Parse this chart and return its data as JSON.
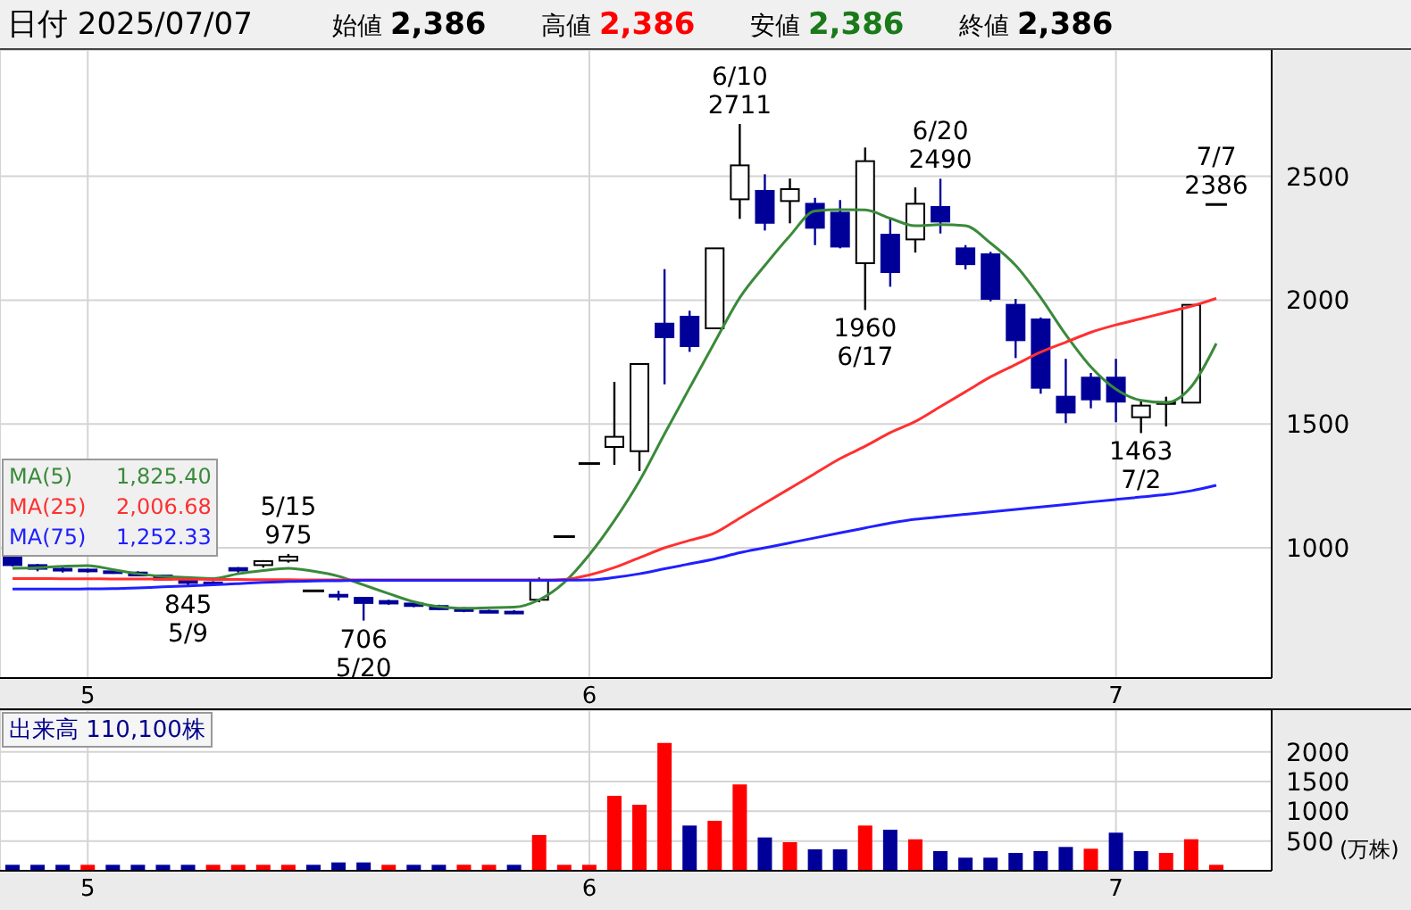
{
  "chart_data": [
    {
      "type": "candlestick",
      "title": "日付 2025/07/07",
      "annotations": [
        "始値 2,386",
        "高値 2,386",
        "安値 2,386",
        "終値 2,386",
        "1,825.40",
        "2,006.68",
        "1,252.33",
        "5/15\n975",
        "845\n5/9",
        "706\n5/20",
        "6/10\n2711",
        "1960\n6/17",
        "6/20\n2490",
        "1463\n7/2",
        "7/7\n2386"
      ],
      "categories": [
        null,
        null,
        null,
        "5",
        null,
        null,
        null,
        null,
        null,
        null,
        null,
        null,
        null,
        null,
        null,
        null,
        null,
        null,
        null,
        null,
        null,
        null,
        null,
        "6",
        null,
        null,
        null,
        null,
        null,
        null,
        null,
        null,
        null,
        null,
        null,
        null,
        null,
        null,
        null,
        null,
        null,
        null,
        null,
        null,
        "7",
        null,
        null,
        null,
        null
      ],
      "ohlc": [
        [
          965,
          970,
          925,
          930
        ],
        [
          930,
          935,
          905,
          915
        ],
        [
          915,
          925,
          900,
          912
        ],
        [
          912,
          915,
          900,
          905
        ],
        [
          905,
          910,
          895,
          900
        ],
        [
          900,
          905,
          885,
          888
        ],
        [
          888,
          892,
          870,
          872
        ],
        [
          872,
          880,
          845,
          858
        ],
        [
          860,
          865,
          850,
          855
        ],
        [
          918,
          922,
          900,
          908
        ],
        [
          930,
          950,
          920,
          946
        ],
        [
          948,
          975,
          940,
          964
        ],
        [
          826,
          828,
          824,
          826
        ],
        [
          810,
          826,
          787,
          808
        ],
        [
          798,
          800,
          706,
          777
        ],
        [
          785,
          790,
          770,
          775
        ],
        [
          775,
          780,
          760,
          765
        ],
        [
          765,
          770,
          748,
          752
        ],
        [
          752,
          760,
          740,
          745
        ],
        [
          745,
          750,
          738,
          742
        ],
        [
          742,
          748,
          735,
          740
        ],
        [
          790,
          880,
          780,
          868
        ],
        [
          1045,
          1045,
          1045,
          1045
        ],
        [
          1340,
          1340,
          1340,
          1340
        ],
        [
          1407,
          1670,
          1335,
          1448
        ],
        [
          1390,
          1742,
          1310,
          1742
        ],
        [
          1905,
          2125,
          1660,
          1850
        ],
        [
          1933,
          1957,
          1791,
          1814
        ],
        [
          1886,
          2209,
          1886,
          2209
        ],
        [
          2407,
          2711,
          2328,
          2544
        ],
        [
          2441,
          2508,
          2281,
          2312
        ],
        [
          2400,
          2491,
          2310,
          2448
        ],
        [
          2389,
          2413,
          2222,
          2292
        ],
        [
          2353,
          2404,
          2209,
          2216
        ],
        [
          2149,
          2616,
          1960,
          2561
        ],
        [
          2264,
          2329,
          2054,
          2113
        ],
        [
          2245,
          2455,
          2192,
          2389
        ],
        [
          2376,
          2490,
          2269,
          2317
        ],
        [
          2209,
          2222,
          2124,
          2145
        ],
        [
          2185,
          2195,
          1995,
          2005
        ],
        [
          1981,
          2005,
          1766,
          1838
        ],
        [
          1922,
          1930,
          1622,
          1646
        ],
        [
          1610,
          1763,
          1503,
          1546
        ],
        [
          1687,
          1706,
          1563,
          1599
        ],
        [
          1687,
          1763,
          1507,
          1590
        ],
        [
          1527,
          1598,
          1463,
          1574
        ],
        [
          1583,
          1610,
          1490,
          1588
        ],
        [
          1586,
          1981,
          1586,
          1981
        ],
        [
          2386,
          2386,
          2386,
          2386
        ]
      ],
      "colors": [
        "#000099",
        "#000099",
        "#000099",
        "#000099",
        "#000099",
        "#000099",
        "#000099",
        "#000099",
        "#000099",
        "#000099",
        "#ffffff",
        "#ffffff",
        "#000000",
        "#000099",
        "#000099",
        "#000099",
        "#000099",
        "#000099",
        "#000099",
        "#000099",
        "#000099",
        "#ffffff",
        "#000000",
        "#000000",
        "#ffffff",
        "#ffffff",
        "#000099",
        "#000099",
        "#ffffff",
        "#ffffff",
        "#000099",
        "#ffffff",
        "#000099",
        "#000099",
        "#ffffff",
        "#000099",
        "#ffffff",
        "#000099",
        "#000099",
        "#000099",
        "#000099",
        "#000099",
        "#000099",
        "#000099",
        "#000099",
        "#ffffff",
        "#ffffff",
        "#ffffff",
        "#000000"
      ],
      "series": [
        {
          "type": "line",
          "name": "MA(5)",
          "color": "#3a8a3a",
          "values": [
            917,
            920,
            925,
            928,
            912,
            895,
            885,
            880,
            876,
            895,
            908,
            917,
            905,
            885,
            850,
            815,
            782,
            762,
            756,
            758,
            760,
            790,
            860,
            972,
            1110,
            1270,
            1460,
            1646,
            1830,
            2010,
            2140,
            2260,
            2360,
            2365,
            2364,
            2330,
            2300,
            2305,
            2300,
            2230,
            2140,
            2010,
            1860,
            1730,
            1640,
            1595,
            1586,
            1650,
            1825
          ]
        },
        {
          "type": "line",
          "name": "MA(25)",
          "color": "#ff3030",
          "values": [
            876,
            876,
            875,
            875,
            874,
            874,
            873,
            873,
            872,
            872,
            871,
            871,
            870,
            870,
            870,
            870,
            870,
            870,
            870,
            870,
            870,
            870,
            872,
            890,
            920,
            960,
            1000,
            1030,
            1060,
            1120,
            1180,
            1240,
            1300,
            1360,
            1410,
            1465,
            1510,
            1570,
            1630,
            1690,
            1740,
            1790,
            1830,
            1870,
            1900,
            1925,
            1950,
            1975,
            2007
          ]
        },
        {
          "type": "line",
          "name": "MA(75)",
          "color": "#2020ff",
          "values": [
            833,
            833,
            833,
            834,
            835,
            838,
            842,
            846,
            850,
            855,
            860,
            864,
            866,
            867,
            868,
            868,
            868,
            868,
            868,
            868,
            868,
            868,
            869,
            870,
            880,
            895,
            915,
            935,
            955,
            980,
            1000,
            1020,
            1040,
            1060,
            1080,
            1100,
            1115,
            1125,
            1135,
            1145,
            1155,
            1165,
            1175,
            1185,
            1195,
            1205,
            1215,
            1230,
            1252
          ]
        }
      ],
      "ylim": [
        474,
        3010
      ],
      "yticks": [
        1000,
        1500,
        2000,
        2500
      ],
      "grid": true,
      "legend": "left"
    },
    {
      "type": "bar",
      "title": "出来高 110,100株",
      "ylabel": "(万株)",
      "categories": [
        null,
        null,
        null,
        "5",
        null,
        null,
        null,
        null,
        null,
        null,
        null,
        null,
        null,
        null,
        null,
        null,
        null,
        null,
        null,
        null,
        null,
        null,
        null,
        "6",
        null,
        null,
        null,
        null,
        null,
        null,
        null,
        null,
        null,
        null,
        null,
        null,
        null,
        null,
        null,
        null,
        null,
        null,
        null,
        null,
        "7",
        null,
        null,
        null,
        null
      ],
      "values": [
        100,
        100,
        100,
        100,
        100,
        100,
        100,
        100,
        100,
        100,
        100,
        100,
        100,
        140,
        140,
        100,
        100,
        100,
        100,
        100,
        100,
        600,
        100,
        100,
        1260,
        1110,
        2150,
        760,
        840,
        1450,
        560,
        480,
        360,
        360,
        760,
        690,
        530,
        330,
        220,
        220,
        300,
        330,
        400,
        370,
        640,
        330,
        300,
        530,
        100
      ],
      "colors": [
        "#000099",
        "#000099",
        "#000099",
        "#ff0000",
        "#000099",
        "#000099",
        "#000099",
        "#000099",
        "#ff0000",
        "#ff0000",
        "#ff0000",
        "#ff0000",
        "#000099",
        "#000099",
        "#000099",
        "#ff0000",
        "#000099",
        "#000099",
        "#ff0000",
        "#ff0000",
        "#000099",
        "#ff0000",
        "#ff0000",
        "#ff0000",
        "#ff0000",
        "#ff0000",
        "#ff0000",
        "#000099",
        "#ff0000",
        "#ff0000",
        "#000099",
        "#ff0000",
        "#000099",
        "#000099",
        "#ff0000",
        "#000099",
        "#ff0000",
        "#000099",
        "#000099",
        "#000099",
        "#000099",
        "#000099",
        "#000099",
        "#ff0000",
        "#000099",
        "#000099",
        "#ff0000",
        "#ff0000",
        "#ff0000"
      ],
      "ylim": [
        0,
        2700
      ],
      "yticks": [
        500,
        1000,
        1500,
        2000
      ],
      "grid": true
    }
  ]
}
